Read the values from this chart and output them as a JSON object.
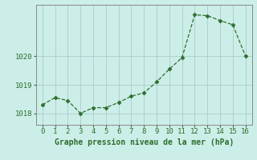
{
  "x": [
    0,
    1,
    2,
    3,
    4,
    5,
    6,
    7,
    8,
    9,
    10,
    11,
    12,
    13,
    14,
    15,
    16
  ],
  "y": [
    1018.3,
    1018.55,
    1018.45,
    1018.0,
    1018.2,
    1018.2,
    1018.38,
    1018.6,
    1018.72,
    1019.1,
    1019.55,
    1019.95,
    1021.45,
    1021.42,
    1021.25,
    1021.1,
    1020.0
  ],
  "line_color": "#2d6e2d",
  "marker": "D",
  "marker_size": 2.5,
  "line_width": 0.9,
  "bg_color": "#cceee8",
  "grid_color": "#aacccc",
  "xlabel": "Graphe pression niveau de la mer (hPa)",
  "xlabel_color": "#2d6e2d",
  "xlabel_fontsize": 7,
  "tick_color": "#2d6e2d",
  "tick_fontsize": 6.5,
  "yticks": [
    1018,
    1019,
    1020
  ],
  "ylim": [
    1017.6,
    1021.8
  ],
  "xlim": [
    -0.5,
    16.5
  ]
}
